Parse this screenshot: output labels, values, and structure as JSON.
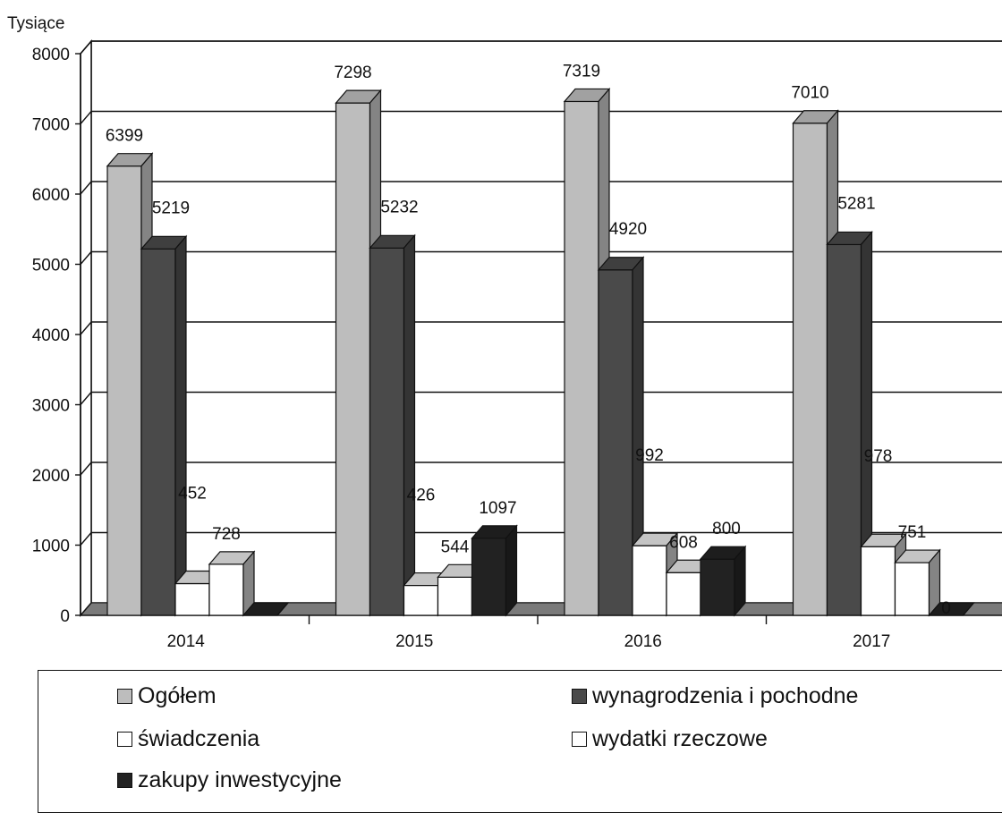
{
  "chart_data": {
    "type": "bar",
    "ylabel": "Tysiące",
    "ylim": [
      0,
      8000
    ],
    "yticks": [
      "0",
      "1000",
      "2000",
      "3000",
      "4000",
      "5000",
      "6000",
      "7000",
      "8000"
    ],
    "categories": [
      "2014",
      "2015",
      "2016",
      "2017"
    ],
    "series": [
      {
        "name": "Ogółem",
        "color": "#bdbdbd",
        "values": [
          6399,
          7298,
          7319,
          7010
        ],
        "labels": [
          "6399",
          "7298",
          "7319",
          "7010"
        ]
      },
      {
        "name": "wynagrodzenia i pochodne",
        "color": "#4a4a4a",
        "values": [
          5219,
          5232,
          4920,
          5281
        ],
        "labels": [
          "5219",
          "5232",
          "4920",
          "5281"
        ]
      },
      {
        "name": "świadczenia",
        "color": "#ffffff",
        "values": [
          452,
          426,
          992,
          978
        ],
        "labels": [
          "452",
          "426",
          "992",
          "978"
        ]
      },
      {
        "name": "wydatki rzeczowe",
        "color": "#ffffff",
        "values": [
          728,
          544,
          608,
          751
        ],
        "labels": [
          "728",
          "544",
          "608",
          "751"
        ]
      },
      {
        "name": "zakupy inwestycyjne",
        "color": "#222222",
        "values": [
          0,
          1097,
          800,
          0
        ],
        "labels": [
          "",
          "1097",
          "800",
          "0"
        ]
      }
    ],
    "legend_position": "bottom",
    "grid": true,
    "style": "3d-clustered-column"
  }
}
